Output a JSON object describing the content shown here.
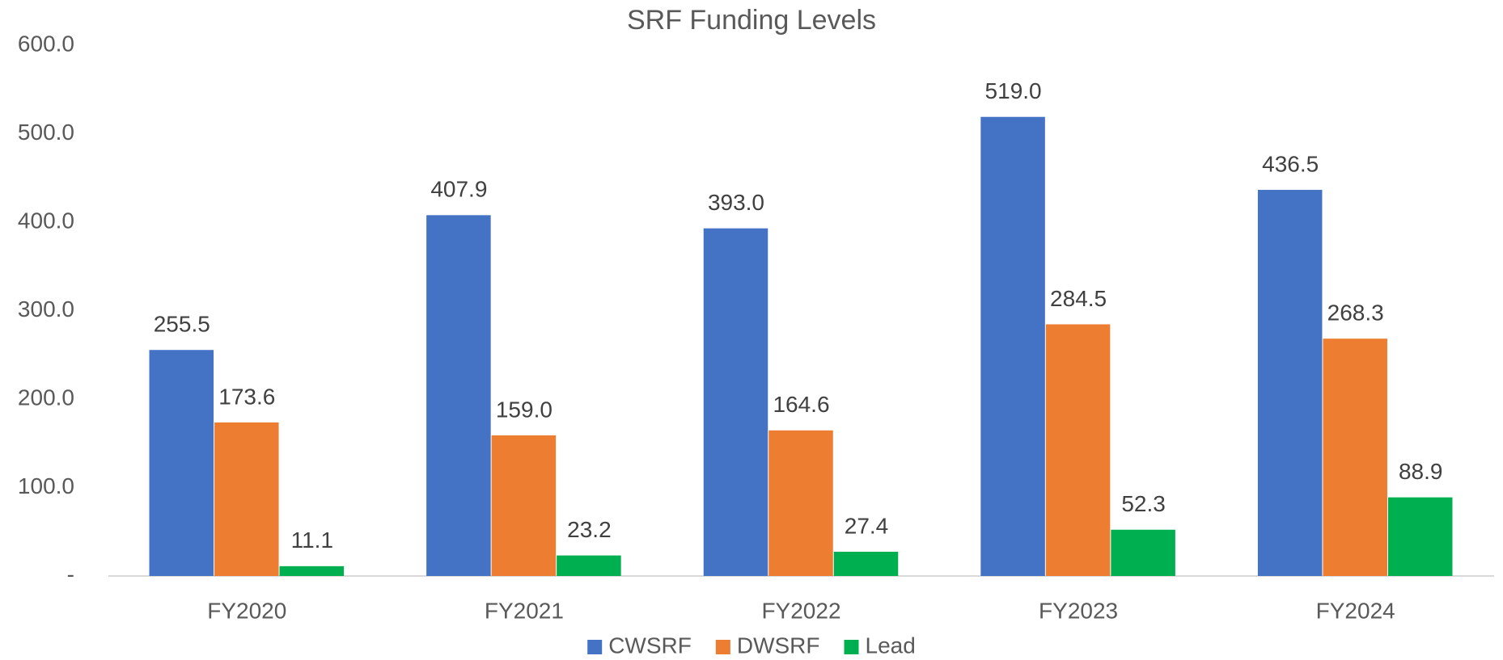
{
  "chart_data": {
    "type": "bar",
    "title": "SRF Funding Levels",
    "categories": [
      "FY2020",
      "FY2021",
      "FY2022",
      "FY2023",
      "FY2024"
    ],
    "series": [
      {
        "name": "CWSRF",
        "color": "#4472c4",
        "values": [
          255.5,
          407.9,
          393.0,
          519.0,
          436.5
        ],
        "value_labels": [
          "255.5",
          "407.9",
          "393.0",
          "519.0",
          "436.5"
        ]
      },
      {
        "name": "DWSRF",
        "color": "#ed7d31",
        "values": [
          173.6,
          159.0,
          164.6,
          284.5,
          268.3
        ],
        "value_labels": [
          "173.6",
          "159.0",
          "164.6",
          "284.5",
          "268.3"
        ]
      },
      {
        "name": "Lead",
        "color": "#00b050",
        "values": [
          11.1,
          23.2,
          27.4,
          52.3,
          88.9
        ],
        "value_labels": [
          "11.1",
          "23.2",
          "27.4",
          "52.3",
          "88.9"
        ]
      }
    ],
    "ylim": [
      0,
      600
    ],
    "yticks": [
      {
        "value": 0,
        "label": "-"
      },
      {
        "value": 100,
        "label": "100.0"
      },
      {
        "value": 200,
        "label": "200.0"
      },
      {
        "value": 300,
        "label": "300.0"
      },
      {
        "value": 400,
        "label": "400.0"
      },
      {
        "value": 500,
        "label": "500.0"
      },
      {
        "value": 600,
        "label": "600.0"
      }
    ],
    "grid": false,
    "legend": "bottom"
  }
}
